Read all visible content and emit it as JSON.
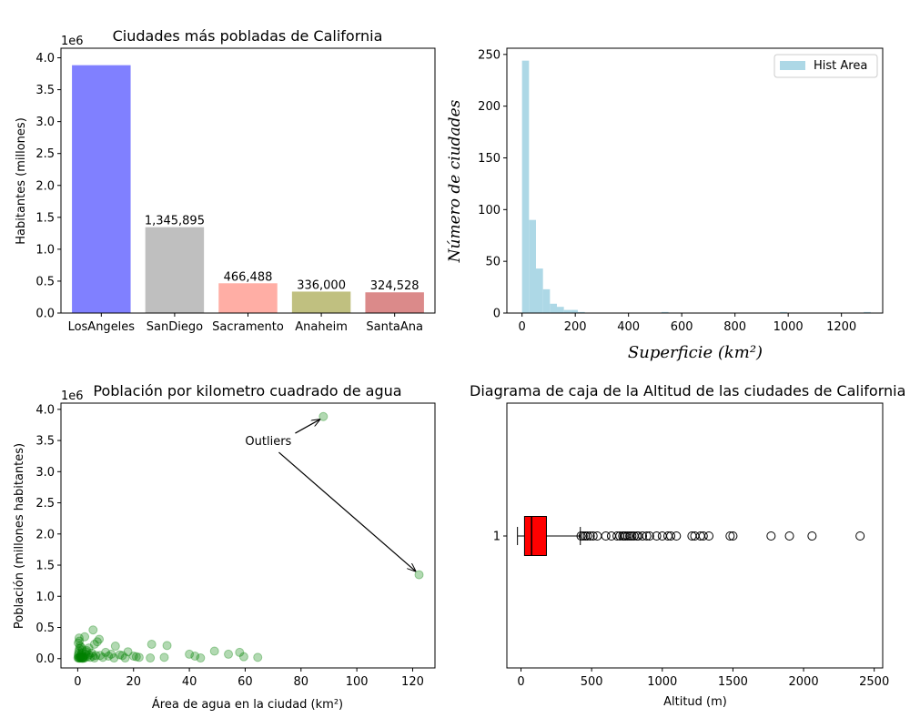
{
  "chart_data": [
    {
      "id": "bar",
      "type": "bar",
      "title": "Ciudades más pobladas de California",
      "xlabel": "",
      "ylabel": "Habitantes (millones)",
      "offset_text": "1e6",
      "categories": [
        "LosAngeles",
        "SanDiego",
        "Sacramento",
        "Anaheim",
        "SantaAna"
      ],
      "values": [
        3884307,
        1345895,
        466488,
        336000,
        324528
      ],
      "data_labels": [
        "",
        "1,345,895",
        "466,488",
        "336,000",
        "324,528"
      ],
      "colors": [
        "#8080ff",
        "#bfbfbf",
        "#ffaea5",
        "#c0c080",
        "#db8a8a"
      ],
      "ylim": [
        0,
        4.15
      ],
      "yticks": [
        0.0,
        0.5,
        1.0,
        1.5,
        2.0,
        2.5,
        3.0,
        3.5,
        4.0
      ],
      "ytick_labels": [
        "0.0",
        "0.5",
        "1.0",
        "1.5",
        "2.0",
        "2.5",
        "3.0",
        "3.5",
        "4.0"
      ]
    },
    {
      "id": "hist",
      "type": "bar",
      "title": "",
      "xlabel": "Superficie (km²)",
      "ylabel": "Número de ciudades",
      "legend": "Hist Area",
      "legend_position": "top-right",
      "color": "#add8e6",
      "bin_width": 26.2,
      "bin_start": 0,
      "counts": [
        244,
        90,
        43,
        23,
        9,
        6,
        3,
        3,
        1,
        0,
        0,
        0,
        0,
        0,
        0,
        0,
        0,
        0,
        0,
        0,
        1,
        0,
        0,
        0,
        0,
        0,
        0,
        0,
        0,
        0,
        0,
        0,
        0,
        0,
        0,
        0,
        0,
        1,
        0,
        0,
        0,
        0,
        0,
        0,
        0,
        0,
        0,
        0,
        0,
        1
      ],
      "xlim": [
        -57,
        1355
      ],
      "ylim": [
        0,
        256
      ],
      "xticks": [
        0,
        200,
        400,
        600,
        800,
        1000,
        1200
      ],
      "yticks": [
        0,
        50,
        100,
        150,
        200,
        250
      ]
    },
    {
      "id": "scatter",
      "type": "scatter",
      "title": "Población por kilometro cuadrado de agua",
      "xlabel": "Área de agua en la ciudad (km²)",
      "ylabel": "Población (millones habitantes)",
      "offset_text": "1e6",
      "color": "#008000",
      "annotation": "Outliers",
      "annotation_anchor": [
        60,
        3500000
      ],
      "annotation_targets": [
        [
          88,
          3880000
        ],
        [
          122.3,
          1345895
        ]
      ],
      "xlim": [
        -6,
        128
      ],
      "ylim": [
        -150000,
        4100000
      ],
      "xticks": [
        0,
        20,
        40,
        60,
        80,
        100,
        120
      ],
      "yticks": [
        0.0,
        0.5,
        1.0,
        1.5,
        2.0,
        2.5,
        3.0,
        3.5,
        4.0
      ],
      "points": [
        [
          88,
          3884307
        ],
        [
          122.3,
          1345895
        ],
        [
          0.5,
          330000
        ],
        [
          2.5,
          350000
        ],
        [
          5.5,
          460000
        ],
        [
          7.7,
          310000
        ],
        [
          4,
          170000
        ],
        [
          6,
          230000
        ],
        [
          7,
          270000
        ],
        [
          10,
          100000
        ],
        [
          13.5,
          200000
        ],
        [
          13,
          10000
        ],
        [
          15,
          60000
        ],
        [
          16,
          50000
        ],
        [
          18,
          110000
        ],
        [
          20,
          40000
        ],
        [
          22,
          20000
        ],
        [
          26.5,
          230000
        ],
        [
          32,
          210000
        ],
        [
          26,
          10000
        ],
        [
          31,
          20000
        ],
        [
          40,
          70000
        ],
        [
          42,
          40000
        ],
        [
          44,
          10000
        ],
        [
          49,
          120000
        ],
        [
          54,
          70000
        ],
        [
          58,
          100000
        ],
        [
          59.5,
          30000
        ],
        [
          64.5,
          20000
        ],
        [
          0.2,
          50000
        ],
        [
          0.3,
          80000
        ],
        [
          0.4,
          120000
        ],
        [
          0.6,
          160000
        ],
        [
          0.8,
          200000
        ],
        [
          1,
          30000
        ],
        [
          1.2,
          60000
        ],
        [
          1.5,
          90000
        ],
        [
          1.7,
          140000
        ],
        [
          2,
          20000
        ],
        [
          2.2,
          40000
        ],
        [
          2.5,
          10000
        ],
        [
          2.8,
          70000
        ],
        [
          3,
          110000
        ],
        [
          3.5,
          30000
        ],
        [
          4,
          60000
        ],
        [
          4.5,
          20000
        ],
        [
          5,
          90000
        ],
        [
          5.5,
          40000
        ],
        [
          6,
          10000
        ],
        [
          6.5,
          50000
        ],
        [
          0.1,
          10000
        ],
        [
          0.3,
          20000
        ],
        [
          0.5,
          5000
        ],
        [
          0.7,
          15000
        ],
        [
          0.9,
          25000
        ],
        [
          1.1,
          8000
        ],
        [
          1.4,
          12000
        ],
        [
          1.6,
          4000
        ],
        [
          1.9,
          18000
        ],
        [
          2.1,
          6000
        ],
        [
          0.2,
          250000
        ],
        [
          0.6,
          280000
        ],
        [
          1.3,
          180000
        ],
        [
          3.2,
          130000
        ],
        [
          8,
          50000
        ],
        [
          9,
          20000
        ],
        [
          11,
          40000
        ],
        [
          12,
          70000
        ],
        [
          17,
          10000
        ],
        [
          21,
          30000
        ]
      ]
    },
    {
      "id": "box",
      "type": "box",
      "title": "Diagrama de caja de la Altitud de las ciudades de California",
      "xlabel": "Altitud (m)",
      "ylabel": "",
      "category": "1",
      "box_color": "#ff0000",
      "xlim": [
        -100,
        2560
      ],
      "xticks": [
        0,
        500,
        1000,
        1500,
        2000,
        2500
      ],
      "whisker_low": -25,
      "q1": 25,
      "median": 75,
      "q3": 180,
      "whisker_high": 420,
      "fliers": [
        425,
        440,
        455,
        470,
        490,
        510,
        540,
        600,
        640,
        680,
        700,
        720,
        730,
        740,
        755,
        770,
        785,
        800,
        820,
        830,
        860,
        890,
        910,
        960,
        1000,
        1040,
        1060,
        1100,
        1210,
        1230,
        1270,
        1290,
        1330,
        1480,
        1500,
        1770,
        1900,
        2060,
        2400
      ]
    }
  ]
}
